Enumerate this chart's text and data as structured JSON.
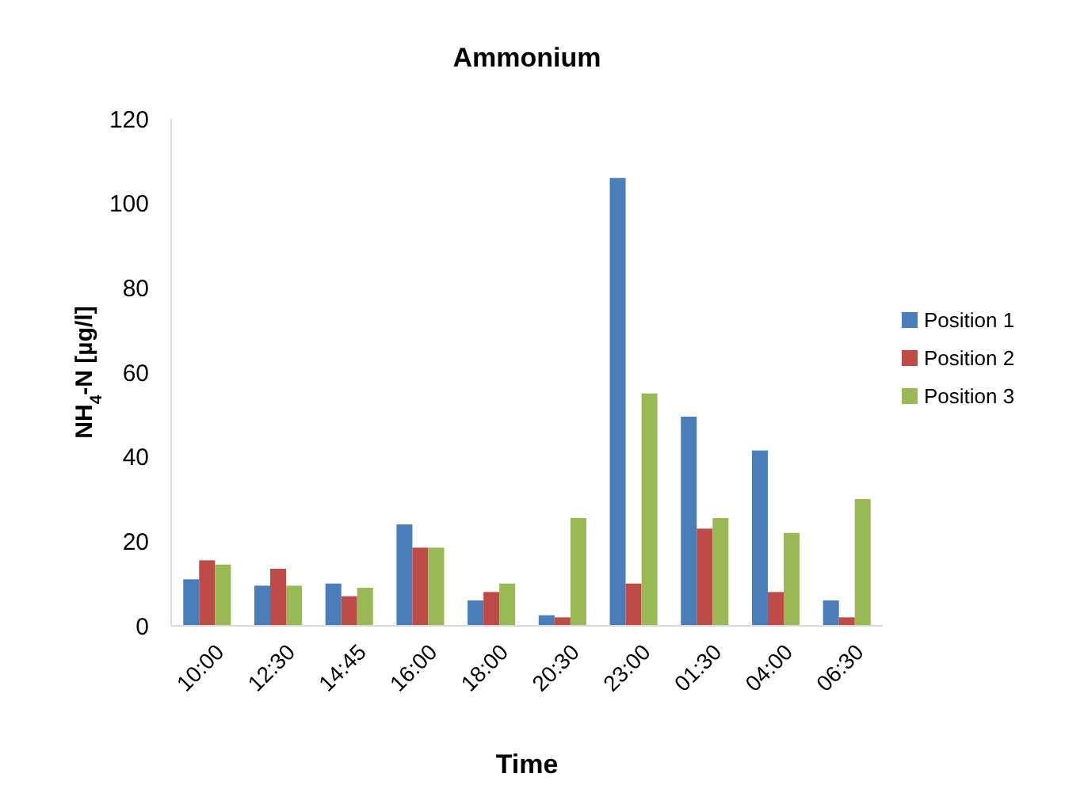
{
  "chart_data": {
    "type": "bar",
    "title": "Ammonium",
    "xlabel": "Time",
    "ylabel": "NH$_{4}$-N [µg/l]",
    "categories": [
      "10:00",
      "12:30",
      "14:45",
      "16:00",
      "18:00",
      "20:30",
      "23:00",
      "01:30",
      "04:00",
      "06:30"
    ],
    "series": [
      {
        "name": "Position 1",
        "color": "#4a7ebb",
        "values": [
          11,
          9.5,
          10,
          24,
          6,
          2.5,
          106,
          49.5,
          41.5,
          6
        ]
      },
      {
        "name": "Position 2",
        "color": "#be4b48",
        "values": [
          15.5,
          13.5,
          7,
          18.5,
          8,
          2,
          10,
          23,
          8,
          2
        ]
      },
      {
        "name": "Position 3",
        "color": "#98b954",
        "values": [
          14.5,
          9.5,
          9,
          18.5,
          10,
          25.5,
          55,
          25.5,
          22,
          30
        ]
      }
    ],
    "ylim": [
      0,
      120
    ],
    "yticks": [
      0,
      20,
      40,
      60,
      80,
      100,
      120
    ],
    "grid": false,
    "legend": "right"
  }
}
